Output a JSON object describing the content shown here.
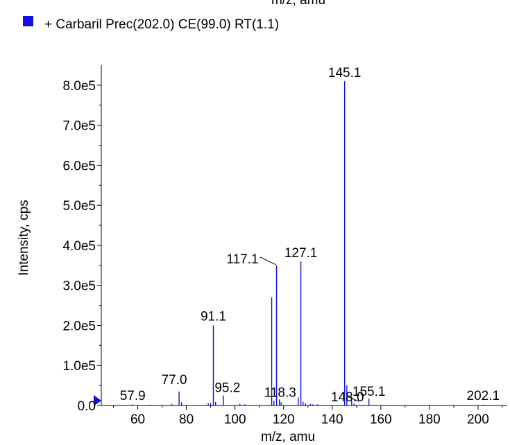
{
  "chart_data": {
    "type": "bar",
    "title": "m/z, amu",
    "legend": {
      "entries": [
        {
          "label": "+ Carbaril Prec(202.0) CE(99.0) RT(1.1)",
          "color": "#1010e0"
        }
      ],
      "placement": "top-left"
    },
    "xlabel": "m/z, amu",
    "ylabel": "Intensity, cps",
    "xlim": [
      45,
      212
    ],
    "ylim": [
      0,
      850000
    ],
    "x_ticks": [
      60,
      80,
      100,
      120,
      140,
      160,
      180,
      200
    ],
    "y_ticks": [
      {
        "value": 0,
        "label": "0.0"
      },
      {
        "value": 100000,
        "label": "1.0e5"
      },
      {
        "value": 200000,
        "label": "2.0e5"
      },
      {
        "value": 300000,
        "label": "3.0e5"
      },
      {
        "value": 400000,
        "label": "4.0e5"
      },
      {
        "value": 500000,
        "label": "5.0e5"
      },
      {
        "value": 600000,
        "label": "6.0e5"
      },
      {
        "value": 700000,
        "label": "7.0e5"
      },
      {
        "value": 800000,
        "label": "8.0e5"
      }
    ],
    "series": [
      {
        "color": "#1010e0",
        "peaks": [
          {
            "x": 57.9,
            "y": 3000
          },
          {
            "x": 65.0,
            "y": 2000
          },
          {
            "x": 74.0,
            "y": 4000
          },
          {
            "x": 77.0,
            "y": 35000
          },
          {
            "x": 78.0,
            "y": 8000
          },
          {
            "x": 89.0,
            "y": 5000
          },
          {
            "x": 90.0,
            "y": 6000
          },
          {
            "x": 91.1,
            "y": 200000
          },
          {
            "x": 92.0,
            "y": 9000
          },
          {
            "x": 95.2,
            "y": 25000
          },
          {
            "x": 102.0,
            "y": 4000
          },
          {
            "x": 104.0,
            "y": 3000
          },
          {
            "x": 115.1,
            "y": 270000
          },
          {
            "x": 116.0,
            "y": 12000
          },
          {
            "x": 117.1,
            "y": 350000
          },
          {
            "x": 118.3,
            "y": 15000
          },
          {
            "x": 119.0,
            "y": 8000
          },
          {
            "x": 126.0,
            "y": 20000
          },
          {
            "x": 127.1,
            "y": 360000
          },
          {
            "x": 128.0,
            "y": 9000
          },
          {
            "x": 129.0,
            "y": 6000
          },
          {
            "x": 131.0,
            "y": 4000
          },
          {
            "x": 132.0,
            "y": 3000
          },
          {
            "x": 134.0,
            "y": 3000
          },
          {
            "x": 145.1,
            "y": 810000
          },
          {
            "x": 146.0,
            "y": 50000
          },
          {
            "x": 148.0,
            "y": 12000
          },
          {
            "x": 149.0,
            "y": 5000
          },
          {
            "x": 155.1,
            "y": 17000
          },
          {
            "x": 202.1,
            "y": 2000
          }
        ]
      }
    ],
    "peak_labels": [
      {
        "x": 57.9,
        "text": "57.9"
      },
      {
        "x": 77.0,
        "text": "77.0"
      },
      {
        "x": 91.1,
        "text": "91.1"
      },
      {
        "x": 95.2,
        "text": "95.2"
      },
      {
        "x": 117.1,
        "text": "117.1"
      },
      {
        "x": 118.3,
        "text": "118.3"
      },
      {
        "x": 127.1,
        "text": "127.1"
      },
      {
        "x": 145.1,
        "text": "145.1"
      },
      {
        "x": 148.0,
        "text": "148.0"
      },
      {
        "x": 155.1,
        "text": "155.1"
      },
      {
        "x": 202.1,
        "text": "202.1"
      }
    ]
  }
}
